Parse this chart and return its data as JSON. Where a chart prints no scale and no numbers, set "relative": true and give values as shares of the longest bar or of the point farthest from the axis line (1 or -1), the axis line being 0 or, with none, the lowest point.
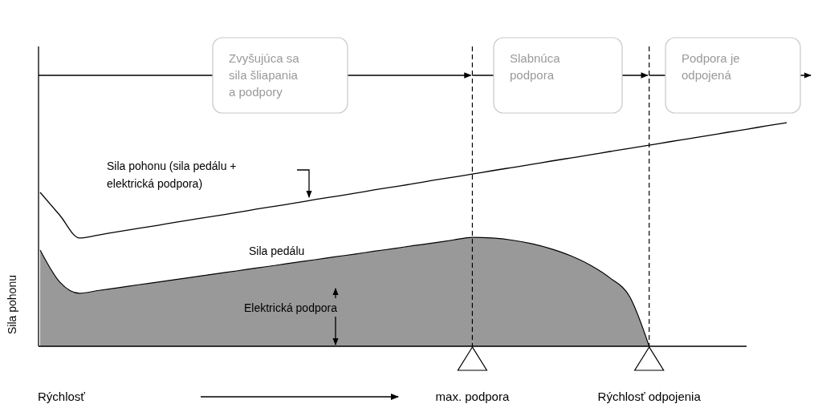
{
  "chart_data": {
    "type": "line",
    "relative": true,
    "xlabel": "Rýchlosť",
    "ylabel": "Sila pohonu",
    "categories": [
      null,
      null,
      null,
      null,
      null,
      null,
      null,
      null,
      null,
      null,
      null,
      null,
      null,
      null,
      null,
      null,
      null,
      null,
      null,
      null,
      null,
      null,
      "max. podpora",
      null,
      null,
      null,
      null,
      null,
      null,
      null,
      null,
      "Rýchlosť odpojenia",
      null,
      null,
      null,
      null,
      null,
      null,
      null
    ],
    "series": [
      {
        "name": "Sila pohonu (sila pedálu + elektrická podpora)",
        "type": "line",
        "color": "#000000",
        "values": [
          0.688,
          0.586,
          0.484,
          0.498,
          0.513,
          0.527,
          0.541,
          0.556,
          0.57,
          0.584,
          0.598,
          0.613,
          0.627,
          0.641,
          0.656,
          0.67,
          0.684,
          0.699,
          0.713,
          0.727,
          0.742,
          0.756,
          0.77,
          0.785,
          0.799,
          0.813,
          0.828,
          0.842,
          0.856,
          0.871,
          0.885,
          0.899,
          0.914,
          0.928,
          0.942,
          0.957,
          0.971,
          0.986,
          1
        ]
      },
      {
        "name": "Sila pedálu",
        "type": "area",
        "color": "#999999",
        "values": [
          0.43,
          0.287,
          0.237,
          0.25,
          0.262,
          0.275,
          0.287,
          0.3,
          0.312,
          0.325,
          0.337,
          0.35,
          0.362,
          0.375,
          0.387,
          0.4,
          0.412,
          0.425,
          0.437,
          0.45,
          0.462,
          0.475,
          0.487,
          0.484,
          0.475,
          0.459,
          0.436,
          0.405,
          0.363,
          0.306,
          0.223,
          0,
          null,
          null,
          null,
          null,
          null,
          null,
          null
        ]
      }
    ],
    "ref_lines": [
      {
        "axis": "x",
        "value": "max. podpora",
        "line_style": "dashed"
      },
      {
        "axis": "x",
        "value": "Rýchlosť odpojenia",
        "line_style": "dashed"
      }
    ],
    "annotations": [
      "Elektrická podpora",
      "Zvyšujúca sa sila šliapania a podpory",
      "Slabnúca podpora",
      "Podpora je odpojená"
    ]
  }
}
